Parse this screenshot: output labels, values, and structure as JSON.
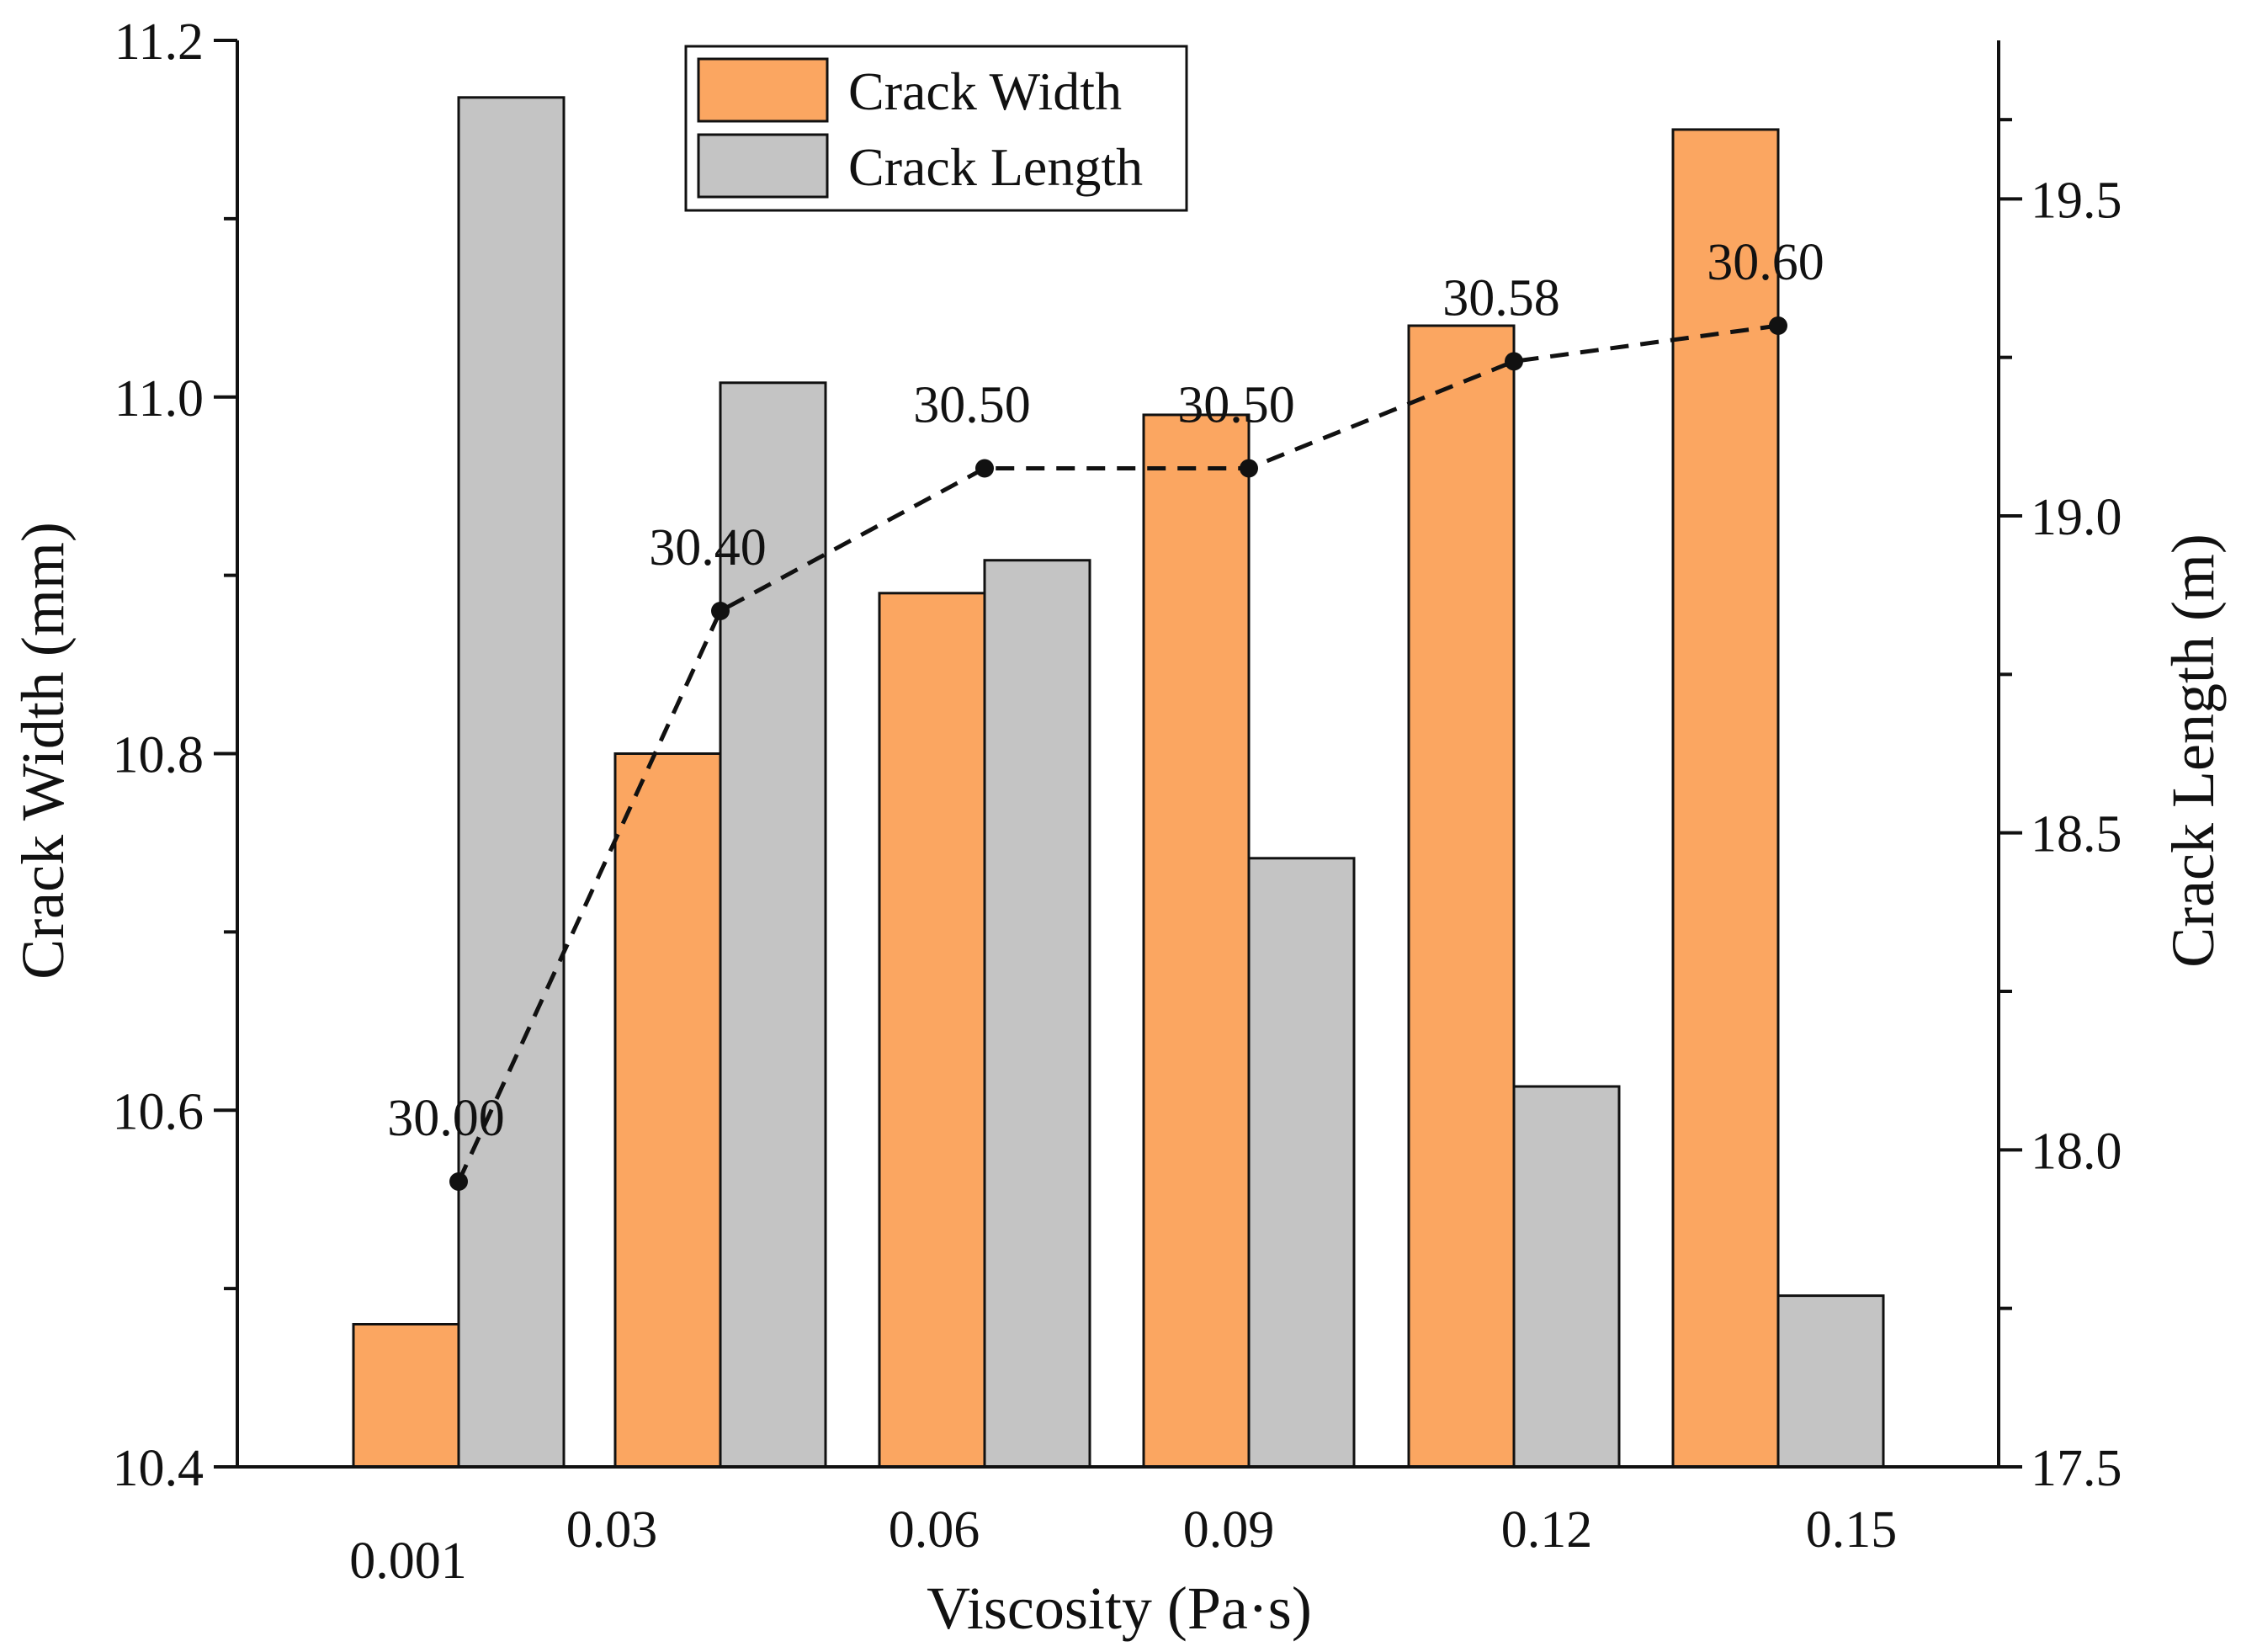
{
  "chart_data": {
    "type": "bar",
    "title": "",
    "xlabel": "Viscosity (Pa·s)",
    "ylabel_left": "Crack Width (mm)",
    "ylabel_right": "Crack Length (m)",
    "categories": [
      "0.001",
      "0.03",
      "0.06",
      "0.09",
      "0.12",
      "0.15"
    ],
    "ylim_left": [
      10.4,
      11.2
    ],
    "ylim_right": [
      17.5,
      19.75
    ],
    "yticks_left": [
      "10.4",
      "10.6",
      "10.8",
      "11.0",
      "11.2"
    ],
    "yticks_right": [
      "17.5",
      "18.0",
      "18.5",
      "19.0",
      "19.5"
    ],
    "series": [
      {
        "name": "Crack Width",
        "axis": "left",
        "color": "#FBA661",
        "values": [
          10.48,
          10.8,
          10.89,
          10.99,
          11.04,
          11.15
        ]
      },
      {
        "name": "Crack Length",
        "axis": "right",
        "color": "#C4C4C4",
        "values": [
          19.66,
          19.21,
          18.93,
          18.46,
          18.1,
          17.77
        ]
      }
    ],
    "line": {
      "style": "dashed",
      "color": "#111111",
      "y_left_axis_values": [
        10.56,
        10.88,
        10.96,
        10.96,
        11.02,
        11.04
      ],
      "labels": [
        "30.00",
        "30.40",
        "30.50",
        "30.50",
        "30.58",
        "30.60"
      ]
    },
    "legend": {
      "position": "top-center",
      "entries": [
        "Crack Width",
        "Crack Length"
      ]
    },
    "grid": false
  }
}
